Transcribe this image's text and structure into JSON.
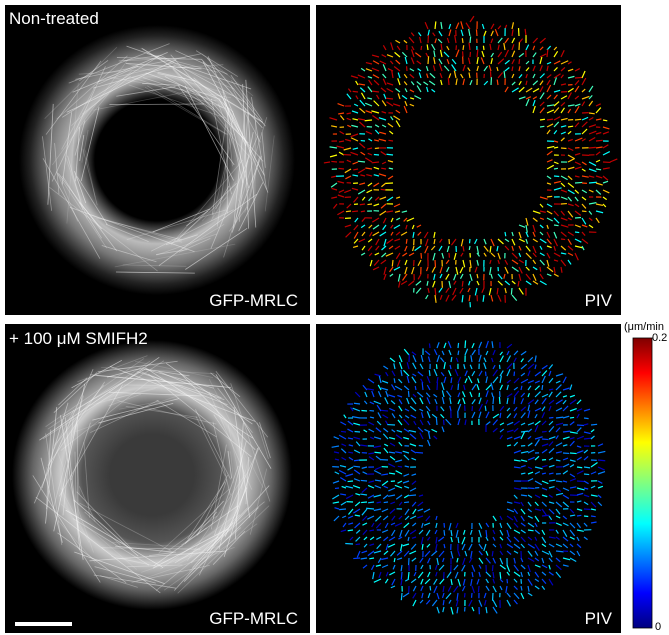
{
  "panels": [
    {
      "title": "Non-treated",
      "label": "GFP-MRLC"
    },
    {
      "label": "PIV"
    },
    {
      "title": "+ 100 μM SMIFH2",
      "label": "GFP-MRLC"
    },
    {
      "label": "PIV"
    }
  ],
  "colorbar": {
    "unit": "(μm/min",
    "max": "0.2",
    "min": "0"
  }
}
